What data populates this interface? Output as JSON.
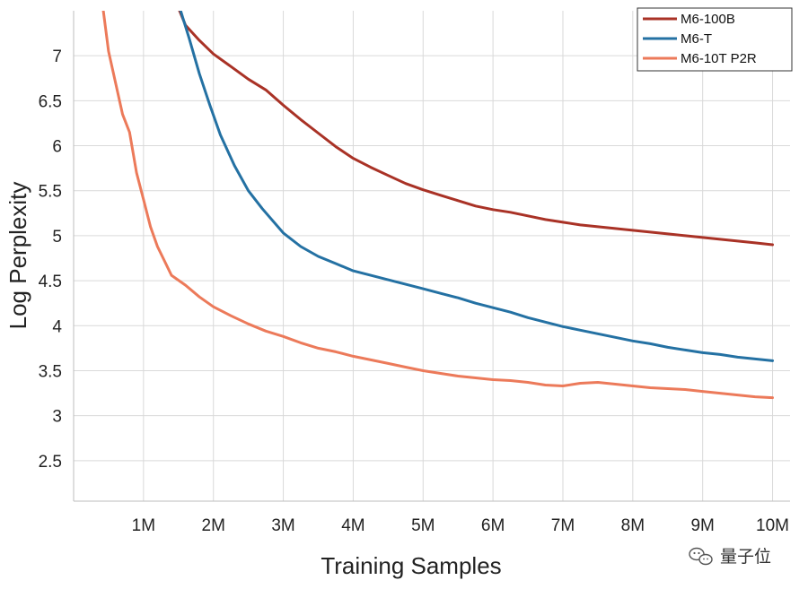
{
  "chart_data": {
    "type": "line",
    "xlabel": "Training Samples",
    "ylabel": "Log Perplexity",
    "x_ticks": [
      1,
      2,
      3,
      4,
      5,
      6,
      7,
      8,
      9,
      10
    ],
    "x_tick_labels": [
      "1M",
      "2M",
      "3M",
      "4M",
      "5M",
      "6M",
      "7M",
      "8M",
      "9M",
      "10M"
    ],
    "y_ticks": [
      2.5,
      3,
      3.5,
      4,
      4.5,
      5,
      5.5,
      6,
      6.5,
      7
    ],
    "y_tick_labels": [
      "2.5",
      "3",
      "3.5",
      "4",
      "4.5",
      "5",
      "5.5",
      "6",
      "6.5",
      "7"
    ],
    "xlim": [
      0,
      10.25
    ],
    "ylim": [
      2.05,
      7.5
    ],
    "grid": true,
    "legend_position": "top-right",
    "x_unit": "millions of samples",
    "series": [
      {
        "name": "M6-100B",
        "color": "#a93226",
        "x": [
          1.5,
          1.6,
          1.8,
          2.0,
          2.25,
          2.5,
          2.75,
          3.0,
          3.25,
          3.5,
          3.75,
          4.0,
          4.25,
          4.5,
          4.75,
          5.0,
          5.25,
          5.5,
          5.75,
          6.0,
          6.25,
          6.5,
          6.75,
          7.0,
          7.25,
          7.5,
          7.75,
          8.0,
          8.25,
          8.5,
          8.75,
          9.0,
          9.25,
          9.5,
          9.75,
          10.0
        ],
        "y": [
          7.53,
          7.34,
          7.17,
          7.02,
          6.88,
          6.74,
          6.62,
          6.45,
          6.29,
          6.14,
          5.99,
          5.86,
          5.76,
          5.67,
          5.58,
          5.51,
          5.45,
          5.39,
          5.33,
          5.29,
          5.26,
          5.22,
          5.18,
          5.15,
          5.12,
          5.1,
          5.08,
          5.06,
          5.04,
          5.02,
          5.0,
          4.98,
          4.96,
          4.94,
          4.92,
          4.9
        ]
      },
      {
        "name": "M6-T",
        "color": "#2471a3",
        "x": [
          1.52,
          1.65,
          1.8,
          1.95,
          2.1,
          2.3,
          2.5,
          2.7,
          3.0,
          3.25,
          3.5,
          3.75,
          4.0,
          4.25,
          4.5,
          4.75,
          5.0,
          5.25,
          5.5,
          5.75,
          6.0,
          6.25,
          6.5,
          6.75,
          7.0,
          7.25,
          7.5,
          7.75,
          8.0,
          8.25,
          8.5,
          8.75,
          9.0,
          9.25,
          9.5,
          9.75,
          10.0
        ],
        "y": [
          7.53,
          7.2,
          6.8,
          6.45,
          6.12,
          5.78,
          5.5,
          5.3,
          5.03,
          4.88,
          4.77,
          4.69,
          4.61,
          4.56,
          4.51,
          4.46,
          4.41,
          4.36,
          4.31,
          4.25,
          4.2,
          4.15,
          4.09,
          4.04,
          3.99,
          3.95,
          3.91,
          3.87,
          3.83,
          3.8,
          3.76,
          3.73,
          3.7,
          3.68,
          3.65,
          3.63,
          3.61
        ]
      },
      {
        "name": "M6-10T P2R",
        "color": "#ec7a5a",
        "x": [
          0.42,
          0.5,
          0.6,
          0.7,
          0.8,
          0.9,
          1.0,
          1.1,
          1.2,
          1.3,
          1.4,
          1.6,
          1.8,
          2.0,
          2.25,
          2.5,
          2.75,
          3.0,
          3.25,
          3.5,
          3.75,
          4.0,
          4.25,
          4.5,
          4.75,
          5.0,
          5.25,
          5.5,
          5.75,
          6.0,
          6.25,
          6.5,
          6.75,
          7.0,
          7.25,
          7.5,
          7.75,
          8.0,
          8.25,
          8.5,
          8.75,
          9.0,
          9.25,
          9.5,
          9.75,
          10.0
        ],
        "y": [
          7.53,
          7.05,
          6.7,
          6.35,
          6.15,
          5.7,
          5.4,
          5.1,
          4.88,
          4.72,
          4.56,
          4.45,
          4.32,
          4.21,
          4.11,
          4.02,
          3.94,
          3.88,
          3.81,
          3.75,
          3.71,
          3.66,
          3.62,
          3.58,
          3.54,
          3.5,
          3.47,
          3.44,
          3.42,
          3.4,
          3.39,
          3.37,
          3.34,
          3.33,
          3.36,
          3.37,
          3.35,
          3.33,
          3.31,
          3.3,
          3.29,
          3.27,
          3.25,
          3.23,
          3.21,
          3.2
        ]
      }
    ]
  },
  "watermark": {
    "text": "量子位",
    "icon": "wechat-icon"
  }
}
